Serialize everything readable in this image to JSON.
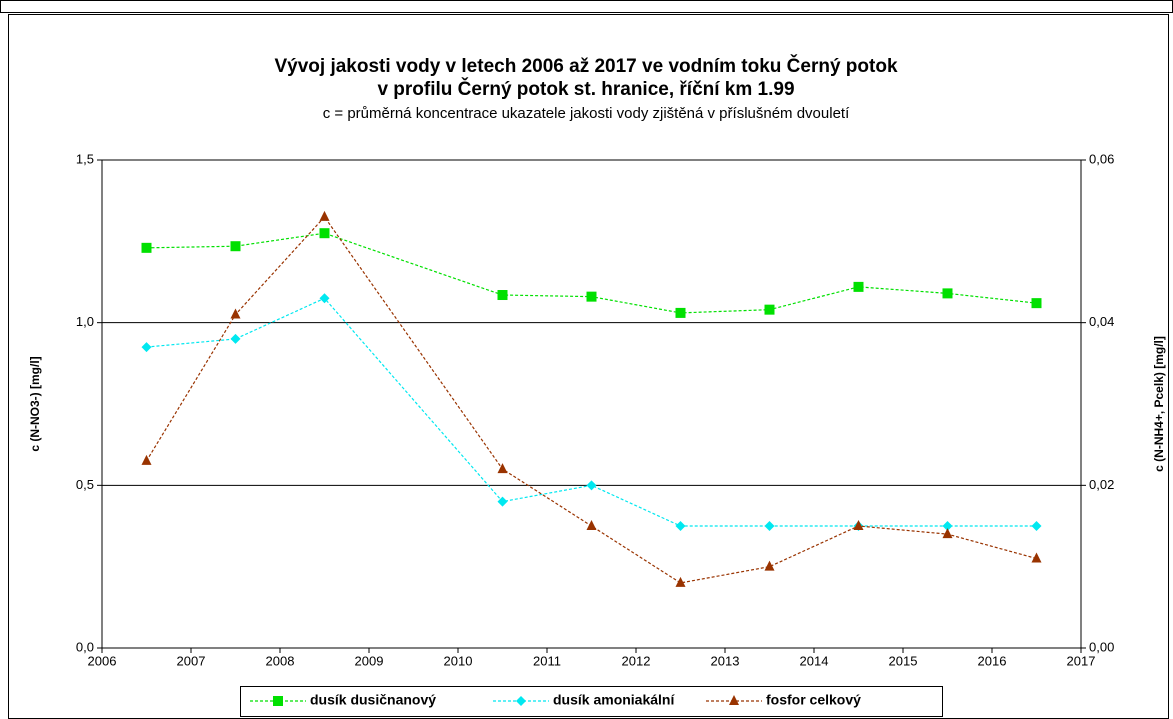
{
  "chart_data": {
    "type": "line",
    "title": "Vývoj jakosti vody v letech 2006 až 2017 ve vodním toku Černý potok",
    "title_line2": "v profilu Černý potok st. hranice, říční km 1.99",
    "subtitle": "c = průměrná koncentrace ukazatele jakosti vody zjištěná v příslušném dvouletí",
    "y_label": "c (N-NO3-) [mg/l]",
    "y2_label": "c (N-NH4+, Pcelk) [mg/l]",
    "x": [
      2006.5,
      2007.5,
      2008.5,
      2010.5,
      2011.5,
      2012.5,
      2013.5,
      2014.5,
      2015.5,
      2016.5
    ],
    "xlim": [
      2006,
      2017
    ],
    "xticks": [
      2006,
      2007,
      2008,
      2009,
      2010,
      2011,
      2012,
      2013,
      2014,
      2015,
      2016,
      2017
    ],
    "ylim": [
      0,
      1.5
    ],
    "yticks": [
      {
        "value": 0,
        "label": "0,0"
      },
      {
        "value": 0.5,
        "label": "0,5"
      },
      {
        "value": 1,
        "label": "1,0"
      },
      {
        "value": 1.5,
        "label": "1,5"
      }
    ],
    "y2lim": [
      0,
      0.06
    ],
    "y2ticks": [
      {
        "value": 0,
        "label": "0,00"
      },
      {
        "value": 0.02,
        "label": "0,02"
      },
      {
        "value": 0.04,
        "label": "0,04"
      },
      {
        "value": 0.06,
        "label": "0,06"
      }
    ],
    "grid": true,
    "legend": "bottom",
    "series": [
      {
        "name": "dusík dusičnanový",
        "color": "#00e000",
        "marker": "square",
        "values": [
          1.23,
          1.235,
          1.275,
          1.085,
          1.08,
          1.03,
          1.04,
          1.11,
          1.09,
          1.06
        ]
      },
      {
        "name": "dusík amoniakální",
        "color": "#00e8f0",
        "marker": "diamond",
        "axis": "y2",
        "values": [
          0.037,
          0.038,
          0.043,
          0.018,
          0.02,
          0.015,
          0.015,
          0.015,
          0.015,
          0.015
        ]
      },
      {
        "name": "fosfor celkový",
        "color": "#993300",
        "marker": "triangle",
        "axis": "y2",
        "values": [
          0.023,
          0.041,
          0.053,
          0.022,
          0.015,
          0.008,
          0.01,
          0.015,
          0.014,
          0.011
        ]
      }
    ]
  }
}
